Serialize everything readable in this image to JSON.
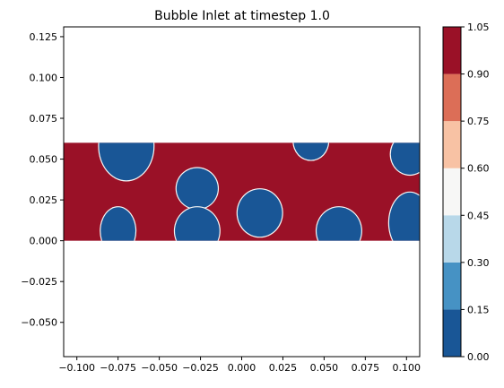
{
  "chart_data": {
    "type": "heatmap",
    "title": "Bubble Inlet at timestep 1.0",
    "xlabel": "",
    "ylabel": "",
    "xlim": [
      -0.108,
      0.108
    ],
    "ylim": [
      -0.071,
      0.131
    ],
    "grid": false,
    "x_ticks": [
      "−0.100",
      "−0.075",
      "−0.050",
      "−0.025",
      "0.000",
      "0.025",
      "0.050",
      "0.075",
      "0.100"
    ],
    "x_tick_values": [
      -0.1,
      -0.075,
      -0.05,
      -0.025,
      0.0,
      0.025,
      0.05,
      0.075,
      0.1
    ],
    "y_ticks": [
      "0.125",
      "0.100",
      "0.075",
      "0.050",
      "0.025",
      "0.000",
      "−0.025",
      "−0.050"
    ],
    "y_tick_values": [
      0.125,
      0.1,
      0.075,
      0.05,
      0.025,
      0.0,
      -0.025,
      -0.05
    ],
    "domain": {
      "x": [
        -0.108,
        0.108
      ],
      "y": [
        0.0,
        0.06
      ]
    },
    "background_value": 1.0,
    "bubbles": [
      {
        "cx": -0.07,
        "cy": 0.058,
        "rx": 0.0165,
        "ry": 0.021,
        "value": 0.0
      },
      {
        "cx": -0.075,
        "cy": 0.006,
        "rx": 0.0105,
        "ry": 0.0145,
        "value": 0.0
      },
      {
        "cx": -0.027,
        "cy": 0.032,
        "rx": 0.0125,
        "ry": 0.0125,
        "value": 0.0
      },
      {
        "cx": -0.027,
        "cy": 0.006,
        "rx": 0.0135,
        "ry": 0.0145,
        "value": 0.0
      },
      {
        "cx": 0.011,
        "cy": 0.017,
        "rx": 0.0135,
        "ry": 0.0145,
        "value": 0.0
      },
      {
        "cx": 0.042,
        "cy": 0.061,
        "rx": 0.0105,
        "ry": 0.0115,
        "value": 0.0
      },
      {
        "cx": 0.059,
        "cy": 0.006,
        "rx": 0.0135,
        "ry": 0.0145,
        "value": 0.0
      },
      {
        "cx": 0.102,
        "cy": 0.053,
        "rx": 0.0115,
        "ry": 0.0125,
        "value": 0.0
      },
      {
        "cx": 0.102,
        "cy": 0.011,
        "rx": 0.0125,
        "ry": 0.0185,
        "value": 0.0
      }
    ],
    "colorbar": {
      "levels": [
        0.0,
        0.15,
        0.3,
        0.45,
        0.6,
        0.75,
        0.9,
        1.05
      ],
      "labels": [
        "0.00",
        "0.15",
        "0.30",
        "0.45",
        "0.60",
        "0.75",
        "0.90",
        "1.05"
      ],
      "colors": [
        "#195696",
        "#4692c4",
        "#b8d8e9",
        "#f7f7f6",
        "#f8c2a4",
        "#dc6e57",
        "#9a1127"
      ]
    }
  }
}
